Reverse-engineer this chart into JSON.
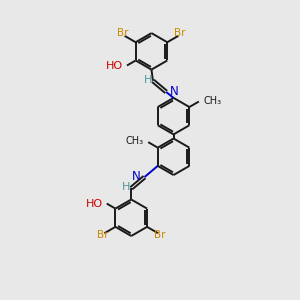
{
  "bg_color": "#e8e8e8",
  "bond_color": "#1a1a1a",
  "nitrogen_color": "#0000cc",
  "oxygen_color": "#cc0000",
  "bromine_color": "#cc8800",
  "hydrogen_color": "#4d9999",
  "carbon_color": "#1a1a1a",
  "line_width": 1.4,
  "figsize": [
    3.0,
    3.0
  ],
  "dpi": 100,
  "xlim": [
    0.5,
    5.5
  ],
  "ylim": [
    0.2,
    10.2
  ]
}
